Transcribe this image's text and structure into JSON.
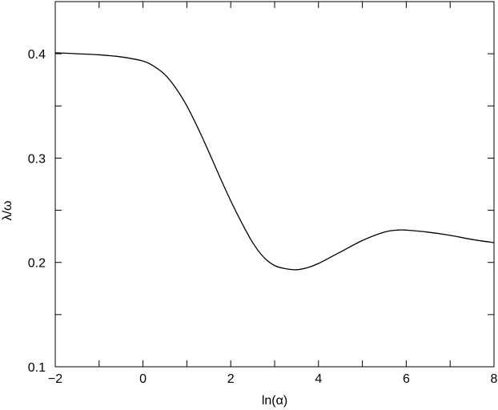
{
  "chart_data": {
    "type": "line",
    "title": "",
    "xlabel": "ln(α)",
    "ylabel": "λ/ω",
    "xlim": [
      -2,
      8
    ],
    "ylim": [
      0.1,
      0.45
    ],
    "x_ticks": [
      -2,
      -1,
      0,
      1,
      2,
      3,
      4,
      5,
      6,
      7,
      8
    ],
    "x_tick_labels": [
      "−2",
      "",
      "0",
      "",
      "2",
      "",
      "4",
      "",
      "6",
      "",
      "8"
    ],
    "y_ticks": [
      0.1,
      0.15,
      0.2,
      0.25,
      0.3,
      0.35,
      0.4
    ],
    "y_tick_labels": [
      "0.1",
      "",
      "0.2",
      "",
      "0.3",
      "",
      "0.4"
    ],
    "grid": false,
    "legend": "none",
    "series": [
      {
        "x": [
          -2.0,
          -1.5,
          -1.0,
          -0.5,
          0.0,
          0.25,
          0.5,
          0.75,
          1.0,
          1.25,
          1.5,
          1.75,
          2.0,
          2.25,
          2.5,
          2.75,
          3.0,
          3.25,
          3.5,
          3.75,
          4.0,
          4.5,
          5.0,
          5.5,
          5.8,
          6.0,
          6.5,
          7.0,
          7.5,
          8.0
        ],
        "y": [
          0.401,
          0.4,
          0.399,
          0.397,
          0.393,
          0.388,
          0.38,
          0.367,
          0.35,
          0.329,
          0.306,
          0.282,
          0.259,
          0.238,
          0.219,
          0.205,
          0.197,
          0.194,
          0.193,
          0.195,
          0.199,
          0.21,
          0.221,
          0.229,
          0.231,
          0.231,
          0.229,
          0.226,
          0.222,
          0.219
        ]
      }
    ]
  }
}
